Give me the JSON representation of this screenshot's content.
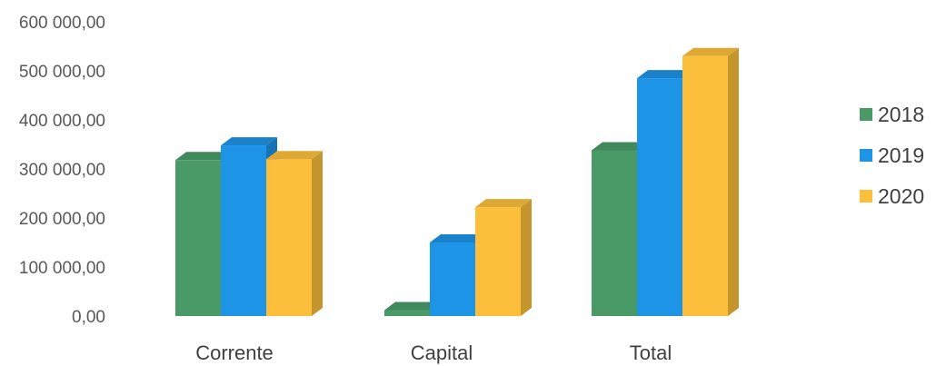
{
  "chart_data": {
    "type": "bar",
    "style": "3d-clustered-column",
    "categories": [
      "Corrente",
      "Capital",
      "Total"
    ],
    "series": [
      {
        "name": "2018",
        "color": "#4a9a68",
        "values": [
          318000,
          12000,
          338000
        ]
      },
      {
        "name": "2019",
        "color": "#1e94e6",
        "values": [
          348000,
          150000,
          485000
        ]
      },
      {
        "name": "2020",
        "color": "#fcbf3b",
        "values": [
          320000,
          222000,
          530000
        ]
      }
    ],
    "ylim": [
      0,
      600000
    ],
    "y_ticks": [
      "0,00",
      "100 000,00",
      "200 000,00",
      "300 000,00",
      "400 000,00",
      "500 000,00",
      "600 000,00"
    ],
    "legend_position": "right",
    "grid": false
  }
}
